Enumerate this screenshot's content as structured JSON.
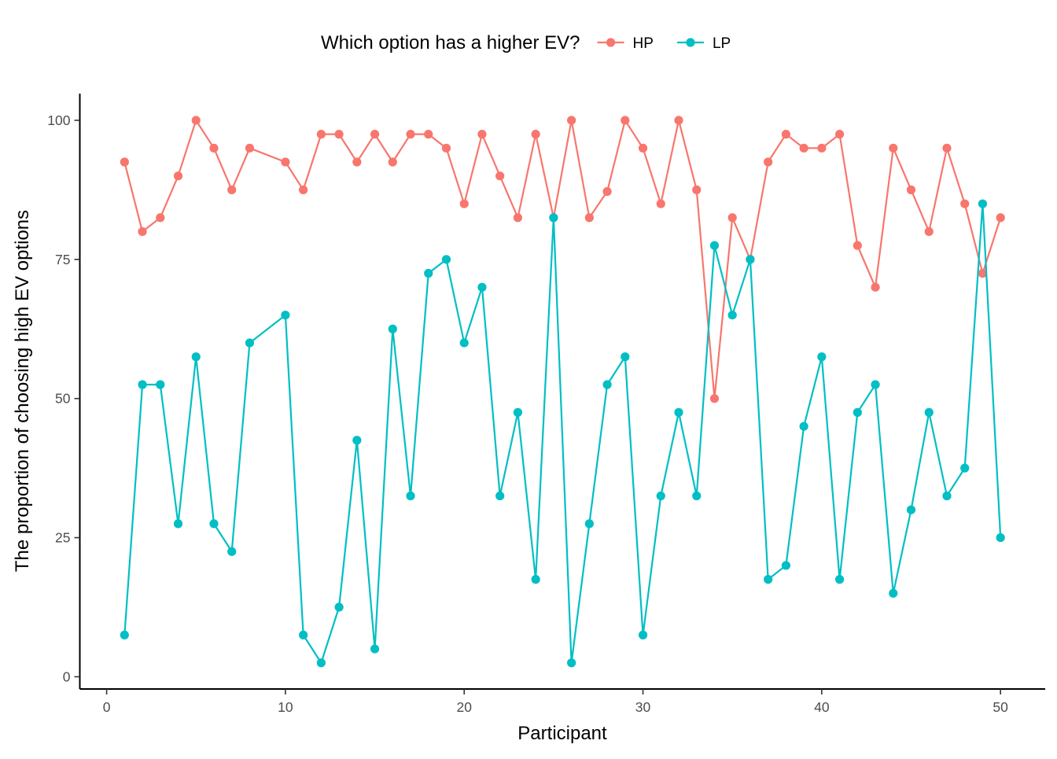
{
  "chart_data": {
    "type": "line",
    "xlabel": "Participant",
    "ylabel": "The proportion of choosing high EV options",
    "xlim": [
      -1.5,
      52.5
    ],
    "ylim": [
      -2.2,
      104.8
    ],
    "xticks": [
      0,
      10,
      20,
      30,
      40,
      50
    ],
    "yticks": [
      0,
      25,
      50,
      75,
      100
    ],
    "grid": false,
    "legend": {
      "title": "Which option has a higher EV?",
      "position": "top"
    },
    "x": [
      1,
      2,
      3,
      4,
      5,
      6,
      7,
      8,
      10,
      11,
      12,
      13,
      14,
      15,
      16,
      17,
      18,
      19,
      20,
      21,
      22,
      23,
      24,
      25,
      26,
      27,
      28,
      29,
      30,
      31,
      32,
      33,
      34,
      35,
      36,
      37,
      38,
      39,
      40,
      41,
      42,
      43,
      44,
      45,
      46,
      47,
      48,
      49,
      50
    ],
    "series": [
      {
        "name": "HP",
        "color": "#F8766D",
        "values": [
          92.5,
          80,
          82.5,
          90,
          100,
          95,
          87.5,
          95,
          92.5,
          87.5,
          97.5,
          97.5,
          92.5,
          97.5,
          92.5,
          97.5,
          97.5,
          95,
          85,
          97.5,
          90,
          82.5,
          97.5,
          82.5,
          100,
          82.5,
          87.2,
          100,
          95,
          85,
          100,
          87.5,
          50,
          82.5,
          75,
          92.5,
          97.5,
          95,
          95,
          97.5,
          77.5,
          70,
          95,
          87.5,
          80,
          95,
          85,
          72.5,
          82.5
        ]
      },
      {
        "name": "LP",
        "color": "#00BFC4",
        "values": [
          7.5,
          52.5,
          52.5,
          27.5,
          57.5,
          27.5,
          22.5,
          60,
          65,
          7.5,
          2.5,
          12.5,
          42.5,
          5,
          62.5,
          32.5,
          72.5,
          75,
          60,
          70,
          32.5,
          47.5,
          17.5,
          82.5,
          2.5,
          27.5,
          52.5,
          57.5,
          7.5,
          32.5,
          47.5,
          32.5,
          77.5,
          65,
          75,
          17.5,
          20,
          45,
          57.5,
          17.5,
          47.5,
          52.5,
          15,
          30,
          47.5,
          32.5,
          37.5,
          85,
          25
        ]
      }
    ]
  }
}
